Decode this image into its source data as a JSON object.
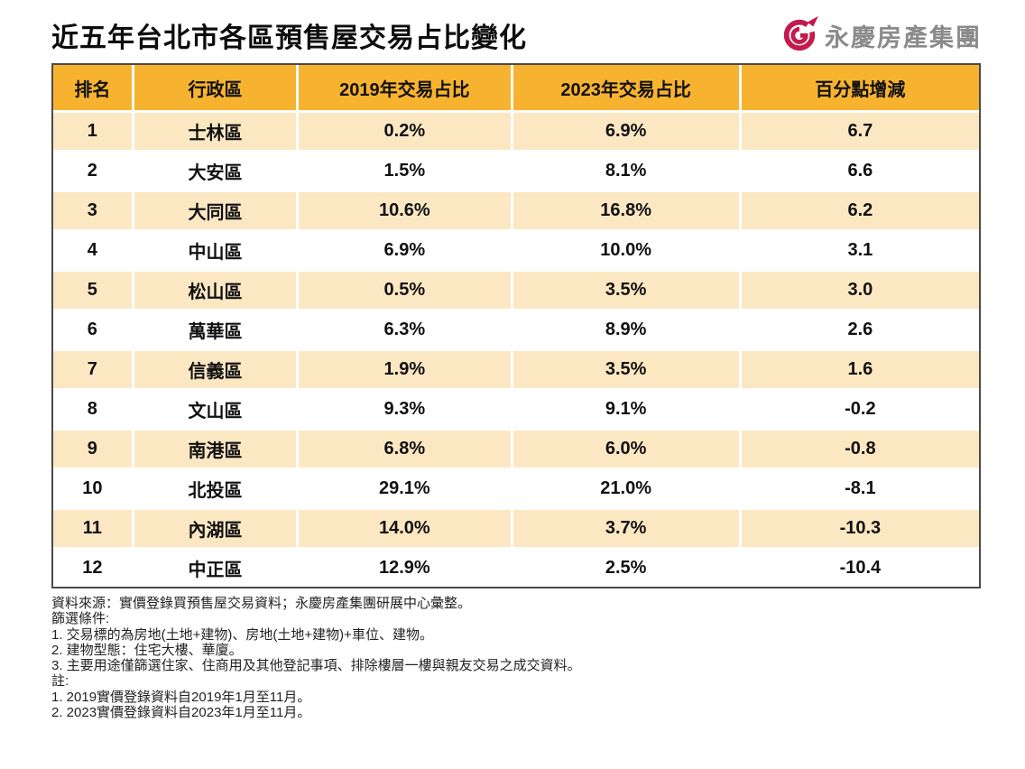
{
  "logo": {
    "brand_text": "永慶房產集團"
  },
  "colors": {
    "header_bg": "#F7B32F",
    "stripe_bg": "#FBE8C3",
    "row_bg": "#FFFFFF",
    "table_border": "#4A4A4A",
    "brand_red": "#C31A4F",
    "brand_gray": "#8A8A8A"
  },
  "chart_data": {
    "type": "table",
    "title": "近五年台北市各區預售屋交易占比變化",
    "columns": [
      "排名",
      "行政區",
      "2019年交易占比",
      "2023年交易占比",
      "百分點增減"
    ],
    "rows": [
      [
        "1",
        "士林區",
        "0.2%",
        "6.9%",
        "6.7"
      ],
      [
        "2",
        "大安區",
        "1.5%",
        "8.1%",
        "6.6"
      ],
      [
        "3",
        "大同區",
        "10.6%",
        "16.8%",
        "6.2"
      ],
      [
        "4",
        "中山區",
        "6.9%",
        "10.0%",
        "3.1"
      ],
      [
        "5",
        "松山區",
        "0.5%",
        "3.5%",
        "3.0"
      ],
      [
        "6",
        "萬華區",
        "6.3%",
        "8.9%",
        "2.6"
      ],
      [
        "7",
        "信義區",
        "1.9%",
        "3.5%",
        "1.6"
      ],
      [
        "8",
        "文山區",
        "9.3%",
        "9.1%",
        "-0.2"
      ],
      [
        "9",
        "南港區",
        "6.8%",
        "6.0%",
        "-0.8"
      ],
      [
        "10",
        "北投區",
        "29.1%",
        "21.0%",
        "-8.1"
      ],
      [
        "11",
        "內湖區",
        "14.0%",
        "3.7%",
        "-10.3"
      ],
      [
        "12",
        "中正區",
        "12.9%",
        "2.5%",
        "-10.4"
      ]
    ]
  },
  "footnotes": [
    "資料來源：實價登錄買預售屋交易資料；永慶房產集團研展中心彙整。",
    "篩選條件:",
    "1. 交易標的為房地(土地+建物)、房地(土地+建物)+車位、建物。",
    "2. 建物型態：住宅大樓、華廈。",
    "3. 主要用途僅篩選住家、住商用及其他登記事項、排除樓層一樓與親友交易之成交資料。",
    "註:",
    "1. 2019實價登錄資料自2019年1月至11月。",
    "2. 2023實價登錄資料自2023年1月至11月。"
  ]
}
